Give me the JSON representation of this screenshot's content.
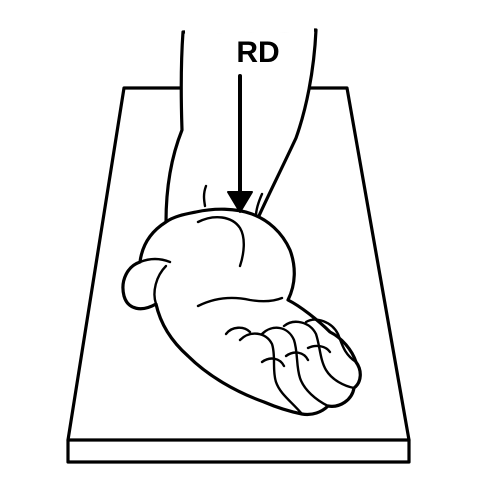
{
  "diagram": {
    "label": "RD",
    "colors": {
      "ink": "#000000",
      "paper": "#ffffff"
    }
  }
}
